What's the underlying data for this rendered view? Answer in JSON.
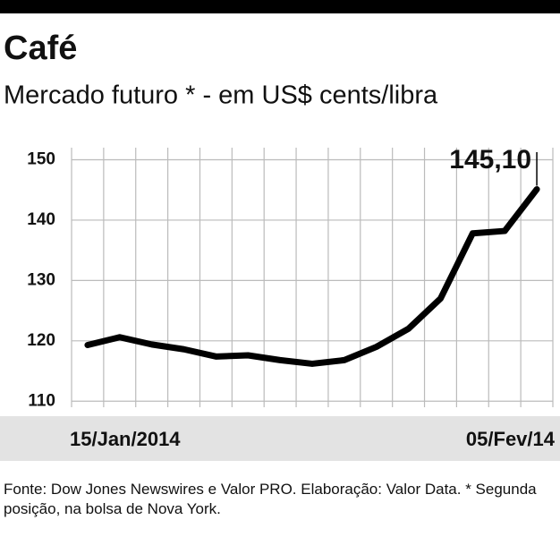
{
  "chart_data": {
    "type": "line",
    "title": "Café",
    "subtitle": "Mercado futuro * - em US$ cents/libra",
    "categories": [
      "15/Jan/2014",
      null,
      null,
      null,
      null,
      null,
      null,
      null,
      null,
      null,
      null,
      null,
      null,
      null,
      "05/Fev/14"
    ],
    "values": [
      119.3,
      120.6,
      119.4,
      118.6,
      117.4,
      117.6,
      116.8,
      116.2,
      116.8,
      119.0,
      122.0,
      127.0,
      137.8,
      138.2,
      145.1
    ],
    "value_labels": [
      null,
      null,
      null,
      null,
      null,
      null,
      null,
      null,
      null,
      null,
      null,
      null,
      null,
      null,
      "145,10"
    ],
    "color": "#000000",
    "ylim": [
      109,
      152
    ],
    "yticks": [
      110,
      120,
      130,
      140,
      150
    ],
    "grid": true,
    "source": "Fonte: Dow Jones Newswires e Valor PRO. Elaboração: Valor Data. * Segunda posição, na bolsa de Nova York."
  }
}
